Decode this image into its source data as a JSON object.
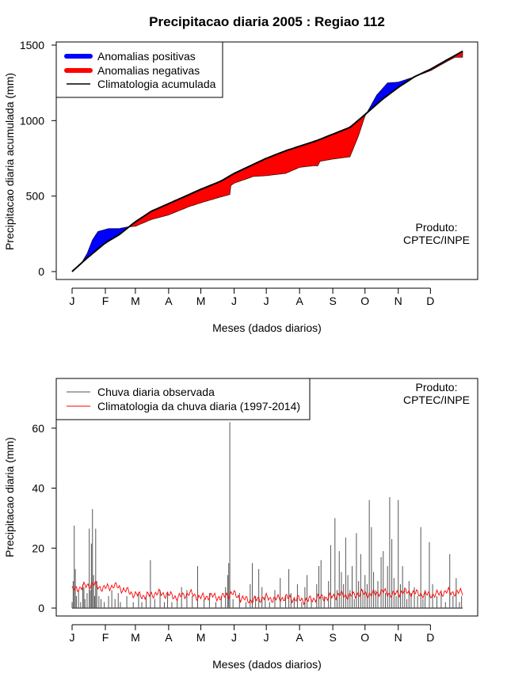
{
  "title": "Precipitacao diaria 2005 : Regiao 112",
  "product_label": "Produto:",
  "product_name": "CPTEC/INPE",
  "colors": {
    "positive": "#0000ff",
    "negative": "#ff0000",
    "climatology": "#000000",
    "observed": "#555555",
    "climatology_daily": "#ff0000"
  },
  "chart_data": [
    {
      "type": "area",
      "name": "accumulated",
      "xlabel": "Meses (dados diarios)",
      "ylabel": "Precipitacao diaria acumulada (mm)",
      "ylim": [
        0,
        1500
      ],
      "xlim": [
        1,
        365
      ],
      "yticks": [
        0,
        500,
        1000,
        1500
      ],
      "month_labels": [
        "J",
        "F",
        "M",
        "A",
        "M",
        "J",
        "J",
        "A",
        "S",
        "O",
        "N",
        "D"
      ],
      "month_start_days": [
        1,
        32,
        60,
        91,
        121,
        152,
        182,
        213,
        244,
        274,
        305,
        335
      ],
      "legend": [
        "Anomalias positivas",
        "Anomalias negativas",
        "Climatologia acumulada"
      ],
      "legend_position": "top-left",
      "climatology_day": [
        1,
        15,
        32,
        45,
        60,
        75,
        91,
        110,
        121,
        140,
        152,
        170,
        182,
        200,
        213,
        230,
        244,
        260,
        274,
        290,
        305,
        320,
        335,
        350,
        365
      ],
      "climatology_value": [
        0,
        90,
        190,
        245,
        330,
        400,
        450,
        510,
        545,
        600,
        650,
        710,
        750,
        800,
        830,
        870,
        910,
        955,
        1040,
        1140,
        1220,
        1290,
        1340,
        1400,
        1460
      ],
      "observed_day": [
        1,
        10,
        15,
        20,
        25,
        35,
        45,
        52,
        60,
        75,
        91,
        110,
        121,
        140,
        148,
        149,
        152,
        170,
        182,
        200,
        213,
        225,
        230,
        232,
        244,
        260,
        268,
        274,
        285,
        295,
        305,
        320,
        335,
        350,
        358,
        365
      ],
      "observed_value": [
        0,
        60,
        120,
        210,
        265,
        285,
        285,
        295,
        300,
        345,
        375,
        430,
        455,
        495,
        510,
        570,
        585,
        630,
        635,
        650,
        690,
        700,
        700,
        730,
        745,
        760,
        900,
        1030,
        1170,
        1250,
        1255,
        1290,
        1330,
        1390,
        1420,
        1420
      ]
    },
    {
      "type": "bar",
      "name": "daily",
      "xlabel": "Meses (dados diarios)",
      "ylabel": "Precipitacao diaria (mm)",
      "ylim": [
        0,
        75
      ],
      "xlim": [
        1,
        365
      ],
      "yticks": [
        0,
        20,
        40,
        60
      ],
      "month_labels": [
        "J",
        "F",
        "M",
        "A",
        "M",
        "J",
        "J",
        "A",
        "S",
        "O",
        "N",
        "D"
      ],
      "month_start_days": [
        1,
        32,
        60,
        91,
        121,
        152,
        182,
        213,
        244,
        274,
        305,
        335
      ],
      "legend": [
        "Chuva diaria observada",
        "Climatologia da chuva diaria (1997-2014)"
      ],
      "legend_position": "top-left",
      "observed": [
        [
          1,
          2
        ],
        [
          2,
          9
        ],
        [
          3,
          27.5
        ],
        [
          4,
          13
        ],
        [
          5,
          4
        ],
        [
          7,
          6
        ],
        [
          9,
          2
        ],
        [
          11,
          8
        ],
        [
          12,
          7
        ],
        [
          13,
          3
        ],
        [
          15,
          5
        ],
        [
          17,
          26.5
        ],
        [
          18,
          6
        ],
        [
          19,
          21.5
        ],
        [
          20,
          33
        ],
        [
          21,
          11
        ],
        [
          22,
          4
        ],
        [
          23,
          26.5
        ],
        [
          24,
          9
        ],
        [
          26,
          4
        ],
        [
          28,
          3
        ],
        [
          31,
          2
        ],
        [
          35,
          4
        ],
        [
          38,
          6
        ],
        [
          41,
          3
        ],
        [
          44,
          5
        ],
        [
          46,
          2
        ],
        [
          52,
          4
        ],
        [
          58,
          2
        ],
        [
          63,
          5
        ],
        [
          66,
          2
        ],
        [
          70,
          4
        ],
        [
          74,
          16
        ],
        [
          78,
          3
        ],
        [
          83,
          6
        ],
        [
          87,
          2
        ],
        [
          90,
          5
        ],
        [
          94,
          2
        ],
        [
          99,
          3
        ],
        [
          103,
          7
        ],
        [
          108,
          6
        ],
        [
          113,
          4
        ],
        [
          118,
          14
        ],
        [
          124,
          3
        ],
        [
          129,
          5
        ],
        [
          135,
          2
        ],
        [
          140,
          4
        ],
        [
          144,
          7
        ],
        [
          146,
          11
        ],
        [
          147,
          15
        ],
        [
          148,
          62
        ],
        [
          151,
          3
        ],
        [
          157,
          5
        ],
        [
          163,
          2
        ],
        [
          167,
          8
        ],
        [
          169,
          15
        ],
        [
          172,
          4
        ],
        [
          175,
          13
        ],
        [
          178,
          7
        ],
        [
          181,
          4
        ],
        [
          185,
          2
        ],
        [
          190,
          6
        ],
        [
          195,
          10
        ],
        [
          200,
          4
        ],
        [
          203,
          13
        ],
        [
          205,
          5
        ],
        [
          208,
          3
        ],
        [
          211,
          8
        ],
        [
          215,
          2
        ],
        [
          218,
          7
        ],
        [
          220,
          11
        ],
        [
          224,
          3
        ],
        [
          229,
          8
        ],
        [
          231,
          14
        ],
        [
          233,
          16
        ],
        [
          236,
          4
        ],
        [
          240,
          9
        ],
        [
          242,
          21
        ],
        [
          246,
          30
        ],
        [
          248,
          6
        ],
        [
          250,
          19
        ],
        [
          252,
          12
        ],
        [
          254,
          8
        ],
        [
          256,
          23.5
        ],
        [
          258,
          11
        ],
        [
          260,
          6
        ],
        [
          262,
          14
        ],
        [
          264,
          3
        ],
        [
          266,
          25
        ],
        [
          268,
          9
        ],
        [
          270,
          18
        ],
        [
          272,
          6
        ],
        [
          274,
          11
        ],
        [
          276,
          8
        ],
        [
          278,
          36
        ],
        [
          280,
          27
        ],
        [
          282,
          12
        ],
        [
          284,
          6
        ],
        [
          286,
          9
        ],
        [
          289,
          17
        ],
        [
          291,
          19
        ],
        [
          293,
          5
        ],
        [
          295,
          14
        ],
        [
          297,
          37
        ],
        [
          299,
          23
        ],
        [
          301,
          10
        ],
        [
          303,
          4
        ],
        [
          305,
          36
        ],
        [
          307,
          8
        ],
        [
          309,
          14
        ],
        [
          311,
          6
        ],
        [
          313,
          3
        ],
        [
          315,
          9
        ],
        [
          317,
          5
        ],
        [
          320,
          7
        ],
        [
          323,
          4
        ],
        [
          326,
          27
        ],
        [
          328,
          3
        ],
        [
          330,
          6
        ],
        [
          334,
          22
        ],
        [
          337,
          8
        ],
        [
          341,
          4
        ],
        [
          345,
          6
        ],
        [
          349,
          2
        ],
        [
          353,
          18
        ],
        [
          356,
          4
        ],
        [
          359,
          10
        ],
        [
          362,
          2
        ],
        [
          364,
          4
        ]
      ],
      "climatology_day": [
        1,
        10,
        20,
        30,
        40,
        50,
        60,
        70,
        80,
        90,
        100,
        110,
        120,
        130,
        140,
        150,
        160,
        170,
        180,
        190,
        200,
        210,
        220,
        230,
        240,
        250,
        260,
        270,
        280,
        290,
        300,
        310,
        320,
        330,
        340,
        350,
        360,
        365
      ],
      "climatology_value": [
        6,
        7,
        8,
        6.5,
        7.5,
        6,
        4.5,
        4,
        5,
        4.5,
        3.5,
        5,
        3.5,
        4,
        3.5,
        5,
        3,
        2.5,
        3.5,
        3,
        3.5,
        3,
        2.5,
        3.5,
        3.5,
        4.5,
        4,
        5,
        4.5,
        5.5,
        4.5,
        5.5,
        5,
        4.5,
        4.5,
        5.5,
        5,
        5.5
      ]
    }
  ]
}
